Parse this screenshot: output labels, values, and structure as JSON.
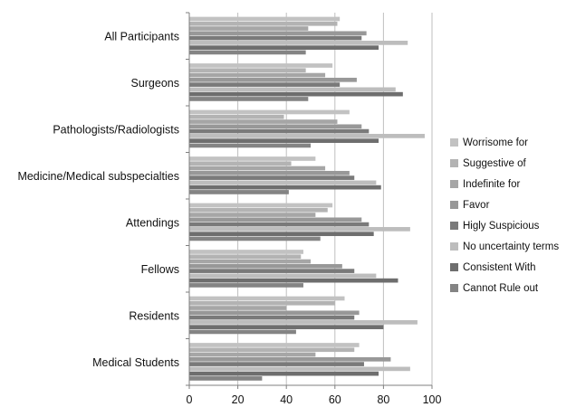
{
  "chart_data": {
    "type": "bar",
    "orientation": "horizontal",
    "title": "",
    "xlabel": "",
    "ylabel": "",
    "xlim": [
      0,
      100
    ],
    "xticks": [
      0,
      20,
      40,
      60,
      80,
      100
    ],
    "grid": "vertical major gridlines",
    "legend_position": "right",
    "categories": [
      "All Participants",
      "Surgeons",
      "Pathologists/Radiologists",
      "Medicine/Medical subspecialties",
      "Attendings",
      "Fellows",
      "Residents",
      "Medical Students"
    ],
    "series": [
      {
        "name": "Worrisome for",
        "color": "#c2c2c2",
        "values": [
          62,
          59,
          66,
          52,
          59,
          47,
          64,
          70
        ]
      },
      {
        "name": "Suggestive of",
        "color": "#b3b3b3",
        "values": [
          61,
          48,
          39,
          42,
          57,
          46,
          60,
          68
        ]
      },
      {
        "name": "Indefinite for",
        "color": "#a6a6a6",
        "values": [
          49,
          56,
          61,
          56,
          52,
          50,
          40,
          52
        ]
      },
      {
        "name": "Favor",
        "color": "#989898",
        "values": [
          73,
          69,
          71,
          66,
          71,
          63,
          70,
          83
        ]
      },
      {
        "name": "Higly Suspicious",
        "color": "#7a7a7a",
        "values": [
          71,
          62,
          74,
          68,
          74,
          68,
          68,
          72
        ]
      },
      {
        "name": "No uncertainty terms",
        "color": "#bdbdbd",
        "values": [
          90,
          85,
          97,
          77,
          91,
          77,
          94,
          91
        ]
      },
      {
        "name": "Consistent With",
        "color": "#6e6e6e",
        "values": [
          78,
          88,
          78,
          79,
          76,
          86,
          80,
          78
        ]
      },
      {
        "name": "Cannot Rule out",
        "color": "#848484",
        "values": [
          48,
          49,
          50,
          41,
          54,
          47,
          44,
          30
        ]
      }
    ]
  }
}
